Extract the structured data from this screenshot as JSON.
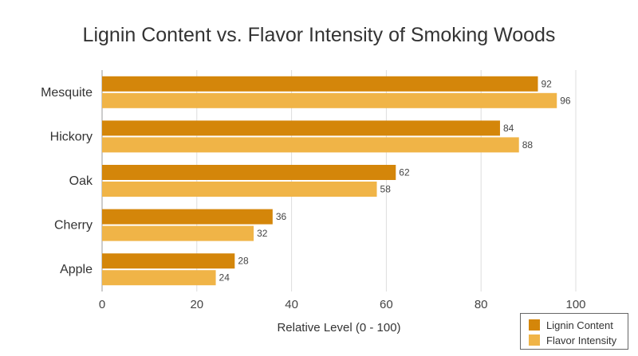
{
  "chart_data": {
    "type": "bar",
    "orientation": "horizontal",
    "title": "Lignin Content vs. Flavor Intensity of Smoking Woods",
    "xlabel": "Relative Level (0 - 100)",
    "ylabel": "",
    "categories": [
      "Mesquite",
      "Hickory",
      "Oak",
      "Cherry",
      "Apple"
    ],
    "series": [
      {
        "name": "Lignin Content",
        "values": [
          92,
          84,
          62,
          36,
          28
        ],
        "color": "#d4860a"
      },
      {
        "name": "Flavor Intensity",
        "values": [
          96,
          88,
          58,
          32,
          24
        ],
        "color": "#f0b447"
      }
    ],
    "xlim": [
      0,
      100
    ],
    "xticks": [
      0,
      20,
      40,
      60,
      80,
      100
    ],
    "grid": true,
    "legend": "bottom-right",
    "data_labels": true
  }
}
